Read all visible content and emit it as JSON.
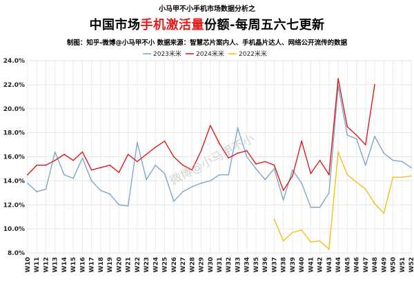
{
  "header": {
    "top_caption": "小马甲不小手机市场数据分析之",
    "title_prefix": "中国市场",
    "title_highlight": "手机激活量",
    "title_suffix": "份额-每周五六七更新",
    "credit": "制图：知乎-微博@小马甲不小   数据来源：智慧芯片案内人、手机晶片达人、网络公开流传的数据"
  },
  "watermark": "微博@小马甲不小",
  "chart_data": {
    "type": "line",
    "title": "中国市场手机激活量份额-每周五六七更新",
    "xlabel": "",
    "ylabel": "",
    "ylim": [
      8.0,
      24.0
    ],
    "yticks": [
      "8.0%",
      "10.0%",
      "12.0%",
      "14.0%",
      "16.0%",
      "18.0%",
      "20.0%",
      "22.0%",
      "24.0%"
    ],
    "grid": true,
    "legend_position": "top-center",
    "categories": [
      "W10",
      "W11",
      "W12",
      "W13",
      "W14",
      "W15",
      "W16",
      "W17",
      "W18",
      "W19",
      "W20",
      "W21",
      "W22",
      "W23",
      "W24",
      "W25",
      "W26",
      "W27",
      "W28",
      "W29",
      "W30",
      "W31",
      "W32",
      "W33",
      "W34",
      "W35",
      "W36",
      "W37",
      "W38",
      "W39",
      "W40",
      "W41",
      "W42",
      "W43",
      "W44",
      "W45",
      "W46",
      "W47",
      "W48",
      "W49",
      "W50",
      "W51",
      "W52"
    ],
    "series": [
      {
        "name": "2023米米",
        "color": "#7ba7cc",
        "values": [
          13.8,
          13.1,
          13.3,
          16.4,
          14.5,
          14.2,
          15.9,
          14.0,
          13.2,
          12.9,
          12.0,
          11.9,
          17.2,
          14.1,
          15.3,
          14.6,
          12.3,
          13.1,
          13.5,
          13.8,
          14.0,
          14.5,
          14.5,
          18.4,
          16.0,
          15.0,
          14.1,
          15.0,
          12.4,
          14.9,
          13.8,
          11.8,
          11.8,
          13.0,
          21.9,
          17.8,
          17.5,
          15.3,
          17.7,
          16.3,
          15.7,
          15.6,
          15.1
        ]
      },
      {
        "name": "2024米米",
        "color": "#dd1a1a",
        "values": [
          14.5,
          15.3,
          15.3,
          15.7,
          16.2,
          15.7,
          16.4,
          14.9,
          15.1,
          15.3,
          14.7,
          16.2,
          15.6,
          16.2,
          16.8,
          17.3,
          16.0,
          15.3,
          14.9,
          16.5,
          18.6,
          17.1,
          15.9,
          16.3,
          16.5,
          15.4,
          15.6,
          15.3,
          13.2,
          14.4,
          17.3,
          14.6,
          15.7,
          14.5,
          22.5,
          18.5,
          17.8,
          17.0,
          22.0,
          null,
          null,
          null,
          null
        ]
      },
      {
        "name": "2022米米",
        "color": "#f2bf1b",
        "values": [
          null,
          null,
          null,
          null,
          null,
          null,
          null,
          null,
          null,
          null,
          null,
          null,
          null,
          null,
          null,
          null,
          null,
          null,
          null,
          null,
          null,
          null,
          null,
          null,
          null,
          null,
          null,
          10.8,
          9.0,
          9.7,
          9.9,
          8.9,
          9.0,
          8.3,
          16.4,
          14.5,
          13.9,
          13.3,
          12.1,
          11.3,
          14.3,
          14.3,
          14.4
        ]
      }
    ]
  }
}
